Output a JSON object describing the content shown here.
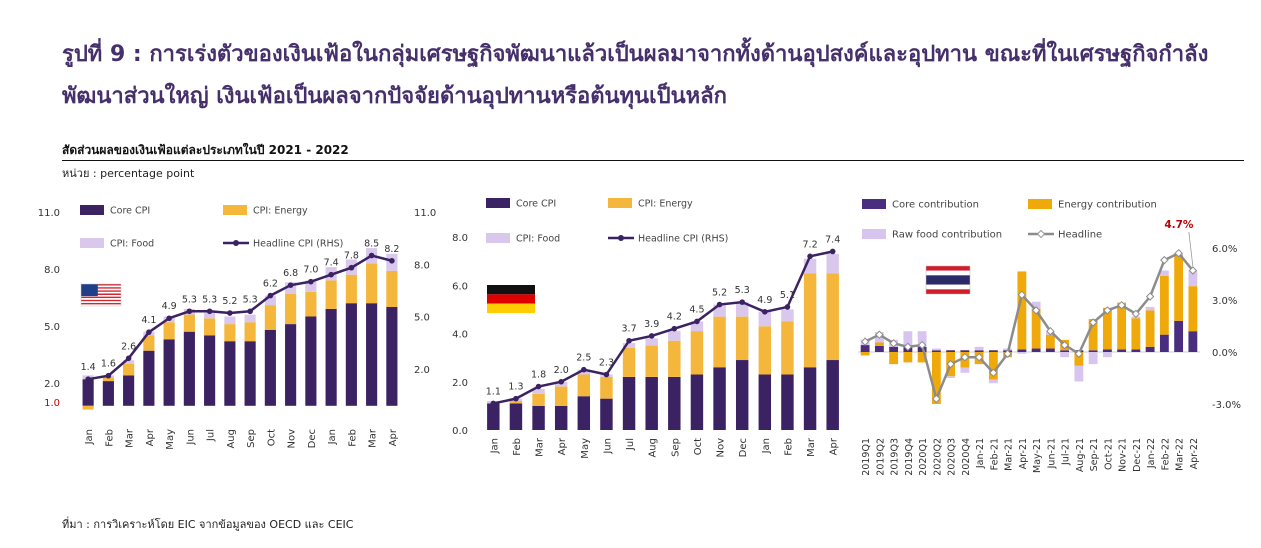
{
  "title": "รูปที่ 9 : การเร่งตัวของเงินเฟ้อในกลุ่มเศรษฐกิจพัฒนาแล้วเป็นผลมาจากทั้งด้านอุปสงค์และอุปทาน  ขณะที่ในเศรษฐกิจกำลังพัฒนาส่วนใหญ่  เงินเฟ้อเป็นผลจากปัจจัยด้านอุปทานหรือต้นทุนเป็นหลัก",
  "subtitle": "สัดส่วนผลของเงินเฟ้อแต่ละประเภทในปี  2021 - 2022",
  "unit": "หน่วย : percentage point",
  "source": "ที่มา : การวิเคราะห์โดย EIC จากข้อมูลของ  OECD และ CEIC",
  "colors": {
    "core": "#3b2262",
    "energy": "#f4b73b",
    "food": "#d9c8ec",
    "headline": "#3b2262",
    "th_headline": "#8c8c8c",
    "th_energy": "#f0a90a",
    "th_core": "#4a2d7e",
    "th_food": "#d8c5ef",
    "axis_red": "#c00000"
  },
  "chart_data": [
    {
      "type": "bar",
      "country": "United States",
      "flag": "us-flag",
      "stacked": true,
      "categories": [
        "Jan",
        "Feb",
        "Mar",
        "Apr",
        "May",
        "Jun",
        "Jul",
        "Aug",
        "Sep",
        "Oct",
        "Nov",
        "Dec",
        "Jan",
        "Feb",
        "Mar",
        "Apr"
      ],
      "series": [
        {
          "name": "Core CPI",
          "kind": "bar",
          "values": [
            1.4,
            1.3,
            1.6,
            2.9,
            3.5,
            3.9,
            3.7,
            3.4,
            3.4,
            4.0,
            4.3,
            4.7,
            5.1,
            5.4,
            5.4,
            5.2
          ]
        },
        {
          "name": "CPI: Energy",
          "kind": "bar",
          "values": [
            -0.2,
            0.2,
            0.6,
            0.8,
            0.9,
            0.9,
            0.9,
            0.9,
            1.0,
            1.3,
            1.6,
            1.3,
            1.5,
            1.5,
            2.1,
            1.9
          ]
        },
        {
          "name": "CPI: Food",
          "kind": "bar",
          "values": [
            0.2,
            0.1,
            0.2,
            0.2,
            0.3,
            0.3,
            0.3,
            0.4,
            0.4,
            0.5,
            0.6,
            0.6,
            0.7,
            0.8,
            0.8,
            0.9
          ]
        },
        {
          "name": "Headline CPI (RHS)",
          "kind": "line",
          "values": [
            1.4,
            1.6,
            2.6,
            4.1,
            4.9,
            5.3,
            5.3,
            5.2,
            5.3,
            6.2,
            6.8,
            7.0,
            7.4,
            7.8,
            8.5,
            8.2
          ]
        }
      ],
      "left_axis": {
        "ylim": [
          1.0,
          11.0
        ],
        "ticks": [
          "1.0",
          "2.0",
          "5.0",
          "8.0",
          "11.0"
        ],
        "red_tick": "1.0"
      },
      "right_axis": {
        "ylim": [
          -1.0,
          11.0
        ],
        "ticks": [
          "2.0",
          "5.0",
          "8.0",
          "11.0"
        ]
      },
      "labels": [
        "1.4",
        "1.6",
        "2.6",
        "4.1",
        "4.9",
        "5.3",
        "5.3",
        "5.2",
        "5.3",
        "6.2",
        "6.8",
        "7.0",
        "7.4",
        "7.8",
        "8.5",
        "8.2"
      ],
      "legend": "top-left"
    },
    {
      "type": "bar",
      "country": "Germany",
      "flag": "de-flag",
      "stacked": true,
      "categories": [
        "Jan",
        "Feb",
        "Mar",
        "Apr",
        "May",
        "Jun",
        "Jul",
        "Aug",
        "Sep",
        "Oct",
        "Nov",
        "Dec",
        "Jan",
        "Feb",
        "Mar",
        "Apr"
      ],
      "series": [
        {
          "name": "Core CPI",
          "kind": "bar",
          "values": [
            1.1,
            1.1,
            1.0,
            1.0,
            1.4,
            1.3,
            2.2,
            2.2,
            2.2,
            2.3,
            2.6,
            2.9,
            2.3,
            2.3,
            2.6,
            2.9
          ]
        },
        {
          "name": "CPI: Energy",
          "kind": "bar",
          "values": [
            0.0,
            0.1,
            0.5,
            0.8,
            0.9,
            0.9,
            1.2,
            1.3,
            1.5,
            1.8,
            2.1,
            1.8,
            2.0,
            2.2,
            3.9,
            3.6
          ]
        },
        {
          "name": "CPI: Food",
          "kind": "bar",
          "values": [
            0.1,
            0.1,
            0.2,
            0.2,
            0.2,
            0.1,
            0.2,
            0.3,
            0.4,
            0.4,
            0.5,
            0.6,
            0.6,
            0.5,
            0.6,
            0.8
          ]
        },
        {
          "name": "Headline CPI (RHS)",
          "kind": "line",
          "values": [
            1.1,
            1.3,
            1.8,
            2.0,
            2.5,
            2.3,
            3.7,
            3.9,
            4.2,
            4.5,
            5.2,
            5.3,
            4.9,
            5.1,
            7.2,
            7.4
          ]
        }
      ],
      "left_axis": {
        "ylim": [
          0.0,
          8.0
        ],
        "ticks": [
          "0.0",
          "2.0",
          "4.0",
          "6.0",
          "8.0"
        ]
      },
      "labels": [
        "1.1",
        "1.3",
        "1.8",
        "2.0",
        "2.5",
        "2.3",
        "3.7",
        "3.9",
        "4.2",
        "4.5",
        "5.2",
        "5.3",
        "4.9",
        "5.1",
        "7.2",
        "7.4"
      ],
      "legend": "top"
    },
    {
      "type": "bar",
      "country": "Thailand",
      "flag": "th-flag",
      "stacked": true,
      "categories": [
        "2019Q1",
        "2019Q2",
        "2019Q3",
        "2019Q4",
        "2020Q1",
        "2020Q2",
        "2020Q3",
        "2020Q4",
        "Jan-21",
        "Feb-21",
        "Mar-21",
        "Apr-21",
        "May-21",
        "Jun-21",
        "Jul-21",
        "Aug-21",
        "Sep-21",
        "Oct-21",
        "Nov-21",
        "Dec-21",
        "Jan-22",
        "Feb-22",
        "Mar-22",
        "Apr-22"
      ],
      "series": [
        {
          "name": "Core contribution",
          "kind": "bar",
          "values": [
            0.4,
            0.35,
            0.3,
            0.3,
            0.3,
            0.1,
            0.1,
            0.1,
            0.1,
            0.1,
            0.1,
            0.15,
            0.2,
            0.2,
            0.1,
            0.1,
            0.1,
            0.15,
            0.15,
            0.15,
            0.3,
            1.0,
            1.8,
            1.2
          ]
        },
        {
          "name": "Energy contribution",
          "kind": "bar",
          "values": [
            -0.2,
            0.2,
            -0.7,
            -0.6,
            -0.6,
            -3.0,
            -1.4,
            -0.9,
            -0.7,
            -1.6,
            -0.3,
            4.5,
            2.3,
            0.8,
            0.6,
            -0.8,
            1.8,
            2.4,
            2.7,
            1.8,
            2.1,
            3.4,
            3.8,
            2.6
          ]
        },
        {
          "name": "Raw food contribution",
          "kind": "bar",
          "values": [
            0.3,
            0.6,
            0.4,
            0.9,
            0.9,
            0.1,
            -0.1,
            -0.3,
            0.2,
            -0.2,
            0.1,
            -0.1,
            0.4,
            0.2,
            -0.3,
            -0.9,
            -0.7,
            -0.3,
            0.0,
            0.1,
            0.2,
            0.3,
            0.1,
            0.9
          ]
        },
        {
          "name": "Headline",
          "kind": "line",
          "values": [
            0.6,
            1.0,
            0.5,
            0.3,
            0.4,
            -2.7,
            -0.7,
            -0.3,
            -0.3,
            -1.2,
            -0.1,
            3.3,
            2.4,
            1.2,
            0.4,
            -0.1,
            1.7,
            2.4,
            2.7,
            2.2,
            3.2,
            5.3,
            5.7,
            4.7
          ]
        }
      ],
      "right_axis": {
        "ylim": [
          -4.5,
          7.5
        ],
        "ticks": [
          "-3.0%",
          "0.0%",
          "3.0%",
          "6.0%"
        ]
      },
      "annotation": "4.7%",
      "legend": "top"
    }
  ]
}
